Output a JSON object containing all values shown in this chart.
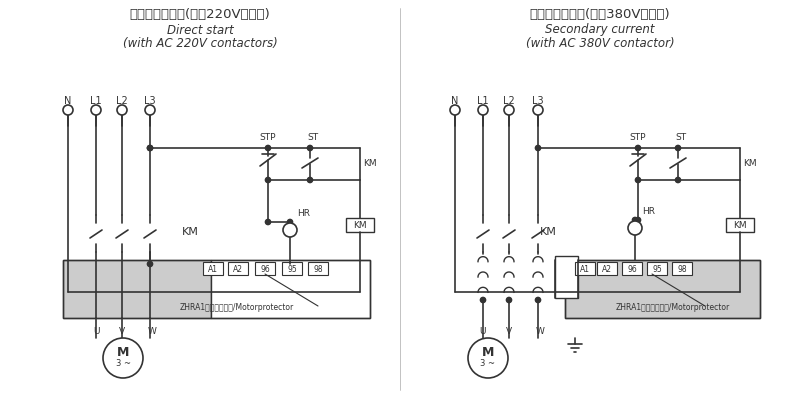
{
  "title_left_cn": "直接启动接线图(配合220V接触器)",
  "title_left_en1": "Direct start",
  "title_left_en2": "(with AC 220V contactors)",
  "title_right_cn": "二次电流接线图(配合380V接触器)",
  "title_right_en1": "Secondary current",
  "title_right_en2": "(with AC 380V contactor)",
  "bg_color": "#ffffff",
  "line_color": "#333333",
  "gray_fill": "#cccccc"
}
